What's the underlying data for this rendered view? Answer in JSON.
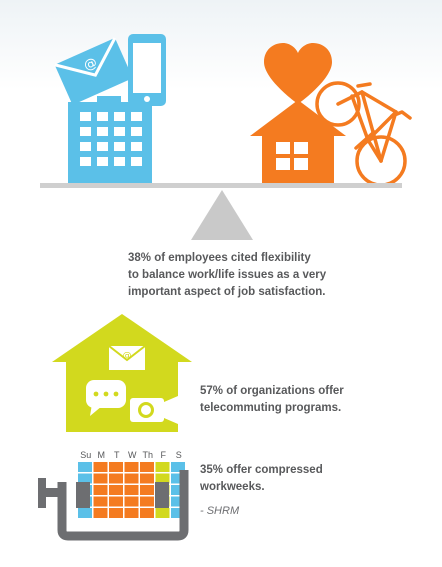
{
  "colors": {
    "blue": "#5bc0e8",
    "orange": "#f47b20",
    "lime": "#d2d91e",
    "gray_triangle": "#c9c9c9",
    "gray_beam": "#cfcfcf",
    "clamp_gray": "#6d6e71",
    "text": "#58595b"
  },
  "icons": [
    "envelope-icon",
    "phone-icon",
    "office-building-icon",
    "heart-icon",
    "house-icon",
    "bicycle-icon",
    "fulcrum-triangle-icon",
    "email-icon",
    "chat-bubble-icon",
    "video-camera-icon",
    "calendar-icon",
    "clamp-icon"
  ],
  "statements": {
    "flexibility": [
      "38% of employees cited flexibility",
      "to balance work/life issues as a very",
      "important aspect of job satisfaction."
    ],
    "telecommuting": [
      "57% of organizations offer",
      "telecommuting programs."
    ],
    "compressed": [
      "35% offer compressed",
      "workweeks."
    ],
    "source": "- SHRM"
  },
  "calendar": {
    "days": [
      "Su",
      "M",
      "T",
      "W",
      "Th",
      "F",
      "S"
    ]
  }
}
